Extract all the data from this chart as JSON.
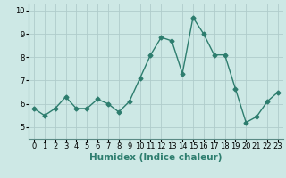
{
  "x": [
    0,
    1,
    2,
    3,
    4,
    5,
    6,
    7,
    8,
    9,
    10,
    11,
    12,
    13,
    14,
    15,
    16,
    17,
    18,
    19,
    20,
    21,
    22,
    23
  ],
  "y": [
    5.8,
    5.5,
    5.8,
    6.3,
    5.8,
    5.8,
    6.2,
    6.0,
    5.65,
    6.1,
    7.1,
    8.1,
    8.85,
    8.7,
    7.3,
    9.7,
    9.0,
    8.1,
    8.1,
    6.65,
    5.2,
    5.45,
    6.1,
    6.5
  ],
  "line_color": "#2d7d6e",
  "bg_color": "#cde8e5",
  "grid_color": "#b0cccb",
  "xlabel": "Humidex (Indice chaleur)",
  "ylim": [
    4.5,
    10.3
  ],
  "xlim": [
    -0.5,
    23.5
  ],
  "yticks": [
    5,
    6,
    7,
    8,
    9,
    10
  ],
  "xticks": [
    0,
    1,
    2,
    3,
    4,
    5,
    6,
    7,
    8,
    9,
    10,
    11,
    12,
    13,
    14,
    15,
    16,
    17,
    18,
    19,
    20,
    21,
    22,
    23
  ],
  "marker": "D",
  "marker_size": 2.5,
  "line_width": 1.0,
  "xlabel_fontsize": 7.5,
  "tick_fontsize": 6.0
}
